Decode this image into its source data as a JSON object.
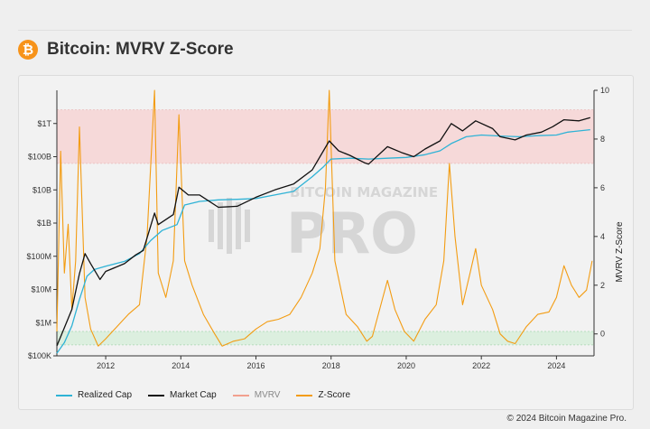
{
  "header": {
    "title": "Bitcoin: MVRV Z-Score",
    "logo_glyph": "₿",
    "logo_icon": "bitcoin-icon"
  },
  "footer": {
    "copyright": "© 2024 Bitcoin Magazine Pro."
  },
  "watermark": {
    "line1": "BITCOIN MAGAZINE",
    "line2": "PRO"
  },
  "colors": {
    "realized": "#2fb3d6",
    "market": "#111111",
    "mvrv": "#f2a08f",
    "zscore": "#f39c12",
    "band_high": "#f6d9d9",
    "band_low": "#dcefdf"
  },
  "chart_data": {
    "type": "line",
    "title": "Bitcoin: MVRV Z-Score",
    "x_ticks": [
      "2012",
      "2014",
      "2016",
      "2018",
      "2020",
      "2022",
      "2024"
    ],
    "x_range": [
      2010.7,
      2025.0
    ],
    "y_left": {
      "scale": "log",
      "range": [
        100000,
        10000000000000
      ],
      "ticks": [
        {
          "v": 100000,
          "label": "$100K"
        },
        {
          "v": 1000000,
          "label": "$1M"
        },
        {
          "v": 10000000,
          "label": "$10M"
        },
        {
          "v": 100000000,
          "label": "$100M"
        },
        {
          "v": 1000000000,
          "label": "$1B"
        },
        {
          "v": 10000000000,
          "label": "$10B"
        },
        {
          "v": 100000000000,
          "label": "$100B"
        },
        {
          "v": 1000000000000,
          "label": "$1T"
        }
      ]
    },
    "y_right": {
      "label": "MVRV Z-Score",
      "range": [
        -0.9,
        10
      ],
      "ticks": [
        "0",
        "2",
        "4",
        "6",
        "8",
        "10"
      ]
    },
    "bands": [
      {
        "name": "high",
        "from": 7.0,
        "to": 9.2
      },
      {
        "name": "low",
        "from": -0.45,
        "to": 0.1
      }
    ],
    "series": [
      {
        "name": "Realized Cap",
        "axis": "left",
        "points": [
          [
            2010.7,
            120000
          ],
          [
            2010.9,
            250000
          ],
          [
            2011.1,
            800000
          ],
          [
            2011.3,
            5000000
          ],
          [
            2011.5,
            25000000
          ],
          [
            2011.7,
            40000000
          ],
          [
            2012.0,
            50000000
          ],
          [
            2012.5,
            70000000
          ],
          [
            2012.9,
            120000000
          ],
          [
            2013.2,
            300000000
          ],
          [
            2013.5,
            600000000
          ],
          [
            2013.9,
            900000000
          ],
          [
            2014.1,
            3500000000
          ],
          [
            2014.5,
            4500000000
          ],
          [
            2015.0,
            5000000000
          ],
          [
            2015.5,
            5200000000
          ],
          [
            2016.0,
            5500000000
          ],
          [
            2016.5,
            7000000000
          ],
          [
            2017.0,
            9000000000
          ],
          [
            2017.5,
            25000000000
          ],
          [
            2017.8,
            50000000000
          ],
          [
            2018.0,
            85000000000
          ],
          [
            2018.5,
            90000000000
          ],
          [
            2019.0,
            85000000000
          ],
          [
            2019.5,
            90000000000
          ],
          [
            2020.0,
            95000000000
          ],
          [
            2020.5,
            115000000000
          ],
          [
            2020.9,
            150000000000
          ],
          [
            2021.2,
            250000000000
          ],
          [
            2021.6,
            400000000000
          ],
          [
            2022.0,
            450000000000
          ],
          [
            2022.5,
            420000000000
          ],
          [
            2023.0,
            400000000000
          ],
          [
            2023.5,
            430000000000
          ],
          [
            2024.0,
            450000000000
          ],
          [
            2024.3,
            550000000000
          ],
          [
            2024.9,
            650000000000
          ]
        ]
      },
      {
        "name": "Market Cap",
        "axis": "left",
        "points": [
          [
            2010.7,
            200000
          ],
          [
            2010.9,
            700000
          ],
          [
            2011.1,
            2500000
          ],
          [
            2011.3,
            30000000
          ],
          [
            2011.45,
            120000000
          ],
          [
            2011.6,
            60000000
          ],
          [
            2011.85,
            20000000
          ],
          [
            2012.0,
            35000000
          ],
          [
            2012.5,
            60000000
          ],
          [
            2012.8,
            110000000
          ],
          [
            2013.0,
            150000000
          ],
          [
            2013.3,
            2000000000
          ],
          [
            2013.4,
            900000000
          ],
          [
            2013.8,
            1800000000
          ],
          [
            2013.95,
            12000000000
          ],
          [
            2014.2,
            7000000000
          ],
          [
            2014.5,
            7000000000
          ],
          [
            2015.0,
            3000000000
          ],
          [
            2015.5,
            3200000000
          ],
          [
            2016.0,
            6000000000
          ],
          [
            2016.5,
            10000000000
          ],
          [
            2017.0,
            15000000000
          ],
          [
            2017.5,
            40000000000
          ],
          [
            2017.95,
            300000000000
          ],
          [
            2018.2,
            150000000000
          ],
          [
            2018.5,
            110000000000
          ],
          [
            2018.9,
            65000000000
          ],
          [
            2019.0,
            60000000000
          ],
          [
            2019.5,
            200000000000
          ],
          [
            2019.9,
            130000000000
          ],
          [
            2020.2,
            100000000000
          ],
          [
            2020.5,
            170000000000
          ],
          [
            2020.9,
            300000000000
          ],
          [
            2021.2,
            1000000000000
          ],
          [
            2021.5,
            600000000000
          ],
          [
            2021.85,
            1200000000000
          ],
          [
            2022.3,
            700000000000
          ],
          [
            2022.5,
            400000000000
          ],
          [
            2022.9,
            320000000000
          ],
          [
            2023.2,
            450000000000
          ],
          [
            2023.6,
            550000000000
          ],
          [
            2023.9,
            800000000000
          ],
          [
            2024.2,
            1300000000000
          ],
          [
            2024.6,
            1200000000000
          ],
          [
            2024.9,
            1500000000000
          ]
        ]
      },
      {
        "name": "MVRV",
        "axis": "right",
        "points": []
      },
      {
        "name": "Z-Score",
        "axis": "right",
        "points": [
          [
            2010.7,
            0.1
          ],
          [
            2010.8,
            7.5
          ],
          [
            2010.9,
            2.5
          ],
          [
            2011.0,
            4.5
          ],
          [
            2011.1,
            1.0
          ],
          [
            2011.2,
            3.0
          ],
          [
            2011.3,
            8.5
          ],
          [
            2011.45,
            1.5
          ],
          [
            2011.6,
            0.2
          ],
          [
            2011.8,
            -0.5
          ],
          [
            2012.0,
            -0.2
          ],
          [
            2012.3,
            0.3
          ],
          [
            2012.6,
            0.8
          ],
          [
            2012.9,
            1.2
          ],
          [
            2013.1,
            4.0
          ],
          [
            2013.3,
            10.0
          ],
          [
            2013.4,
            2.5
          ],
          [
            2013.6,
            1.5
          ],
          [
            2013.8,
            3.0
          ],
          [
            2013.95,
            9.0
          ],
          [
            2014.1,
            3.0
          ],
          [
            2014.3,
            2.0
          ],
          [
            2014.6,
            0.8
          ],
          [
            2014.9,
            0.0
          ],
          [
            2015.1,
            -0.5
          ],
          [
            2015.4,
            -0.3
          ],
          [
            2015.7,
            -0.2
          ],
          [
            2016.0,
            0.2
          ],
          [
            2016.3,
            0.5
          ],
          [
            2016.6,
            0.6
          ],
          [
            2016.9,
            0.8
          ],
          [
            2017.2,
            1.5
          ],
          [
            2017.5,
            2.5
          ],
          [
            2017.7,
            3.5
          ],
          [
            2017.85,
            6.0
          ],
          [
            2017.95,
            10.0
          ],
          [
            2018.1,
            3.0
          ],
          [
            2018.4,
            0.8
          ],
          [
            2018.7,
            0.3
          ],
          [
            2018.95,
            -0.3
          ],
          [
            2019.1,
            -0.1
          ],
          [
            2019.5,
            2.2
          ],
          [
            2019.7,
            1.0
          ],
          [
            2019.95,
            0.1
          ],
          [
            2020.2,
            -0.3
          ],
          [
            2020.5,
            0.6
          ],
          [
            2020.8,
            1.2
          ],
          [
            2021.0,
            3.0
          ],
          [
            2021.15,
            7.0
          ],
          [
            2021.3,
            4.0
          ],
          [
            2021.5,
            1.2
          ],
          [
            2021.7,
            2.5
          ],
          [
            2021.85,
            3.5
          ],
          [
            2022.0,
            2.0
          ],
          [
            2022.3,
            1.0
          ],
          [
            2022.5,
            0.0
          ],
          [
            2022.7,
            -0.3
          ],
          [
            2022.9,
            -0.4
          ],
          [
            2023.2,
            0.3
          ],
          [
            2023.5,
            0.8
          ],
          [
            2023.8,
            0.9
          ],
          [
            2024.0,
            1.5
          ],
          [
            2024.2,
            2.8
          ],
          [
            2024.4,
            2.0
          ],
          [
            2024.6,
            1.5
          ],
          [
            2024.8,
            1.8
          ],
          [
            2024.95,
            3.0
          ]
        ]
      }
    ],
    "legend": [
      "Realized Cap",
      "Market Cap",
      "MVRV",
      "Z-Score"
    ],
    "legend_position": "bottom-left",
    "grid": false
  }
}
